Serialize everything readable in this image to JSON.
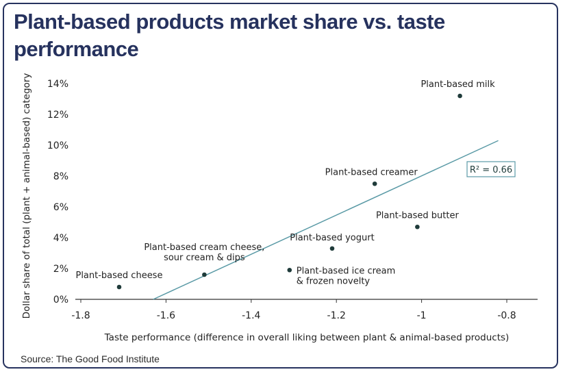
{
  "title": "Plant-based products market share vs. taste performance",
  "source": "Source: The Good Food Institute",
  "colors": {
    "title": "#26325e",
    "points": "#1f3b3a",
    "trend": "#5a9aa6",
    "axis": "#333333"
  },
  "chart_data": {
    "type": "scatter",
    "xlabel": "Taste performance (difference in overall liking between plant & animal-based products)",
    "ylabel": "Dollar share of total (plant + animal-based) category",
    "xlim": [
      -1.8,
      -0.8
    ],
    "ylim": [
      0,
      14
    ],
    "xticks": [
      -1.8,
      -1.6,
      -1.4,
      -1.2,
      -1,
      -0.8
    ],
    "xtick_labels": [
      "-1.8",
      "-1.6",
      "-1.4",
      "-1.2",
      "-1",
      "-0.8"
    ],
    "yticks": [
      0,
      2,
      4,
      6,
      8,
      10,
      12,
      14
    ],
    "ytick_labels": [
      "0%",
      "2%",
      "4%",
      "6%",
      "8%",
      "10%",
      "12%",
      "14%"
    ],
    "points": [
      {
        "label": "Plant-based milk",
        "x": -0.91,
        "y": 13.2
      },
      {
        "label": "Plant-based creamer",
        "x": -1.11,
        "y": 7.5
      },
      {
        "label": "Plant-based butter",
        "x": -1.01,
        "y": 4.7
      },
      {
        "label": "Plant-based yogurt",
        "x": -1.21,
        "y": 3.3
      },
      {
        "label": "Plant-based ice cream & frozen novelty",
        "x": -1.31,
        "y": 1.9
      },
      {
        "label": "Plant-based cream cheese, sour cream & dips",
        "x": -1.51,
        "y": 1.6
      },
      {
        "label": "Plant-based cheese",
        "x": -1.71,
        "y": 0.8
      }
    ],
    "trendline": {
      "x": [
        -1.63,
        -0.82
      ],
      "y": [
        0,
        10.3
      ]
    },
    "annotation": "R² = 0.66",
    "grid": false
  }
}
